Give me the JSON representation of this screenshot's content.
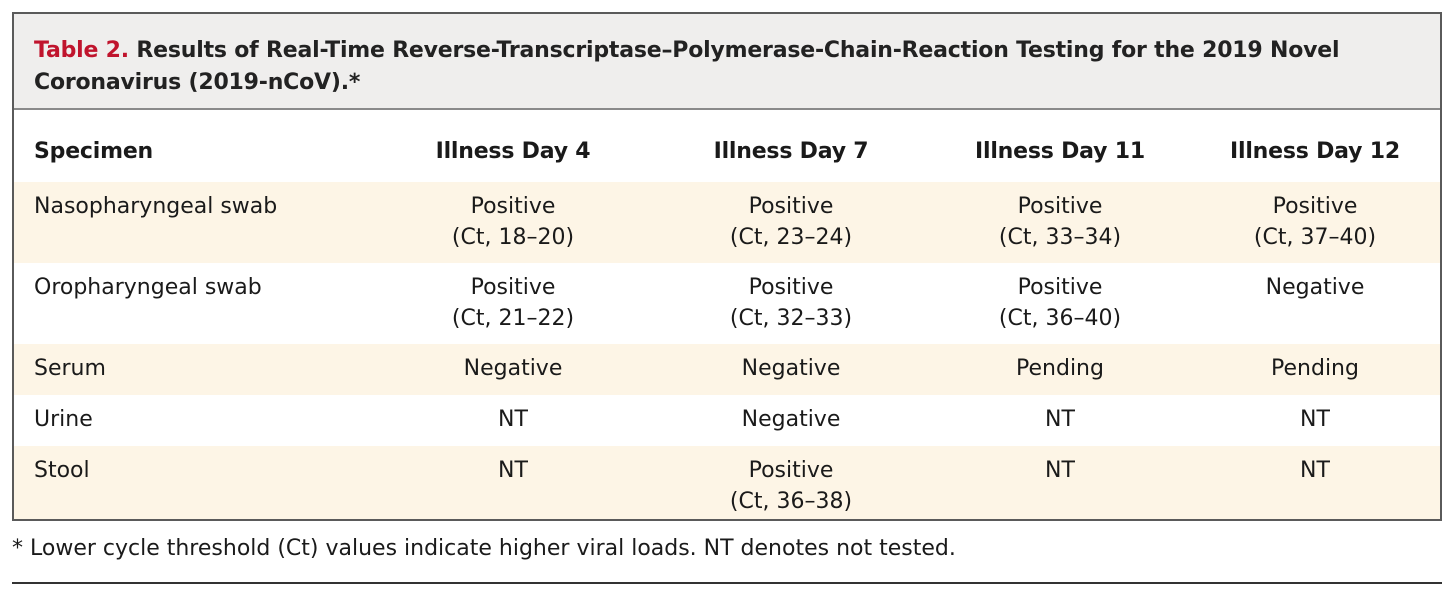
{
  "caption": {
    "label": "Table 2.",
    "title": "Results of Real-Time Reverse-Transcriptase–Polymerase-Chain-Reaction Testing for the 2019 Novel Coronavirus (2019-nCoV).*"
  },
  "columns": [
    "Specimen",
    "Illness Day 4",
    "Illness Day 7",
    "Illness Day 11",
    "Illness Day 12"
  ],
  "rows": [
    {
      "specimen": "Nasopharyngeal swab",
      "cells": [
        [
          "Positive",
          "(Ct, 18–20)"
        ],
        [
          "Positive",
          "(Ct, 23–24)"
        ],
        [
          "Positive",
          "(Ct, 33–34)"
        ],
        [
          "Positive",
          "(Ct, 37–40)"
        ]
      ]
    },
    {
      "specimen": "Oropharyngeal swab",
      "cells": [
        [
          "Positive",
          "(Ct, 21–22)"
        ],
        [
          "Positive",
          "(Ct, 32–33)"
        ],
        [
          "Positive",
          "(Ct, 36–40)"
        ],
        [
          "Negative",
          ""
        ]
      ]
    },
    {
      "specimen": "Serum",
      "cells": [
        [
          "Negative",
          ""
        ],
        [
          "Negative",
          ""
        ],
        [
          "Pending",
          ""
        ],
        [
          "Pending",
          ""
        ]
      ]
    },
    {
      "specimen": "Urine",
      "cells": [
        [
          "NT",
          ""
        ],
        [
          "Negative",
          ""
        ],
        [
          "NT",
          ""
        ],
        [
          "NT",
          ""
        ]
      ]
    },
    {
      "specimen": "Stool",
      "cells": [
        [
          "NT",
          ""
        ],
        [
          "Positive",
          "(Ct, 36–38)"
        ],
        [
          "NT",
          ""
        ],
        [
          "NT",
          ""
        ]
      ]
    }
  ],
  "footnote": "* Lower cycle threshold (Ct) values indicate higher viral loads. NT denotes not tested.",
  "colors": {
    "caption_label": "#c0142d",
    "caption_background": "#efeeed",
    "row_shade": "#fdf5e6",
    "frame_border": "#5a5a5a"
  }
}
